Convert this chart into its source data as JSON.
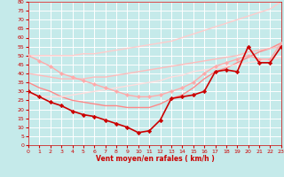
{
  "xlabel": "Vent moyen/en rafales ( km/h )",
  "xlim": [
    0,
    23
  ],
  "ylim": [
    0,
    80
  ],
  "yticks": [
    0,
    5,
    10,
    15,
    20,
    25,
    30,
    35,
    40,
    45,
    50,
    55,
    60,
    65,
    70,
    75,
    80
  ],
  "xticks": [
    0,
    1,
    2,
    3,
    4,
    5,
    6,
    7,
    8,
    9,
    10,
    11,
    12,
    13,
    14,
    15,
    16,
    17,
    18,
    19,
    20,
    21,
    22,
    23
  ],
  "background_color": "#c5eaea",
  "grid_color": "#ffffff",
  "lines": [
    {
      "y": [
        50,
        47,
        44,
        40,
        38,
        36,
        34,
        32,
        30,
        28,
        27,
        27,
        28,
        30,
        32,
        35,
        40,
        44,
        46,
        48,
        50,
        48,
        48,
        57
      ],
      "color": "#ffaaaa",
      "linewidth": 1.0,
      "marker": "D",
      "markersize": 2.0,
      "zorder": 3
    },
    {
      "y": [
        35,
        32,
        30,
        27,
        25,
        24,
        23,
        22,
        22,
        21,
        21,
        21,
        23,
        26,
        28,
        32,
        37,
        41,
        43,
        46,
        49,
        52,
        54,
        57
      ],
      "color": "#ff8888",
      "linewidth": 1.0,
      "marker": null,
      "markersize": 0,
      "zorder": 2
    },
    {
      "y": [
        40,
        39,
        38,
        37,
        37,
        37,
        38,
        38,
        39,
        40,
        41,
        42,
        43,
        44,
        45,
        46,
        47,
        48,
        49,
        50,
        52,
        53,
        54,
        55
      ],
      "color": "#ffbbbb",
      "linewidth": 1.0,
      "marker": null,
      "markersize": 0,
      "zorder": 2
    },
    {
      "y": [
        50,
        50,
        50,
        50,
        50,
        51,
        51,
        52,
        53,
        54,
        55,
        56,
        57,
        58,
        60,
        62,
        64,
        66,
        68,
        70,
        72,
        74,
        76,
        80
      ],
      "color": "#ffcccc",
      "linewidth": 1.0,
      "marker": null,
      "markersize": 0,
      "zorder": 2
    },
    {
      "y": [
        28,
        27,
        27,
        27,
        28,
        29,
        30,
        31,
        32,
        33,
        34,
        35,
        36,
        38,
        39,
        41,
        42,
        43,
        44,
        45,
        46,
        47,
        48,
        49
      ],
      "color": "#ffdddd",
      "linewidth": 1.0,
      "marker": null,
      "markersize": 0,
      "zorder": 2
    },
    {
      "y": [
        30,
        27,
        24,
        22,
        19,
        17,
        16,
        14,
        12,
        10,
        7,
        8,
        14,
        26,
        27,
        28,
        30,
        41,
        42,
        41,
        55,
        46,
        46,
        55
      ],
      "color": "#cc0000",
      "linewidth": 1.2,
      "marker": "D",
      "markersize": 2.2,
      "zorder": 4
    }
  ]
}
